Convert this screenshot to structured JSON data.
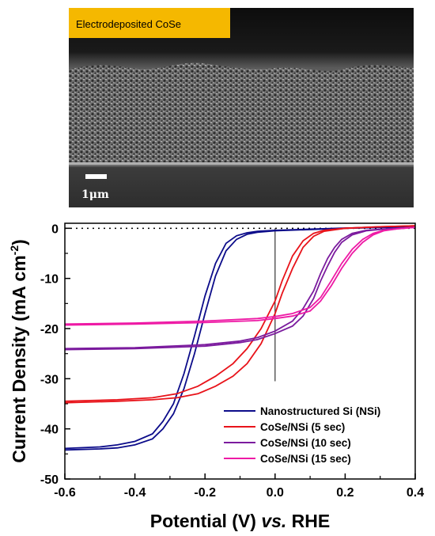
{
  "sem_image": {
    "label": "Electrodeposited CoSe",
    "label_bg_color": "#f5b800",
    "scale_bar_text": "1μm"
  },
  "chart_data": {
    "type": "line",
    "xlabel_main": "Potential (V) ",
    "xlabel_italic": "vs.",
    "xlabel_tail": " RHE",
    "ylabel": "Current Density (mA cm",
    "ylabel_sup": "-2",
    "ylabel_tail": ")",
    "xlim": [
      -0.6,
      0.4
    ],
    "ylim": [
      -50,
      1
    ],
    "xticks": [
      -0.6,
      -0.4,
      -0.2,
      0.0,
      0.2,
      0.4
    ],
    "xtick_labels": [
      "-0.6",
      "-0.4",
      "-0.2",
      "0.0",
      "0.2",
      "0.4"
    ],
    "yticks": [
      0,
      -10,
      -20,
      -30,
      -40,
      -50
    ],
    "ytick_labels": [
      "0",
      "-10",
      "-20",
      "-30",
      "-40",
      "-50"
    ],
    "grid": false,
    "legend_position": "bottom-right",
    "reference_line_x": 0.0,
    "reference_line_ymin": -30.5,
    "zero_dotted_line": true,
    "series": [
      {
        "name": "Nanostructured Si (NSi)",
        "color": "#0c0c8a",
        "forward": [
          [
            -0.6,
            -44.2
          ],
          [
            -0.5,
            -44.0
          ],
          [
            -0.45,
            -43.8
          ],
          [
            -0.4,
            -43.2
          ],
          [
            -0.35,
            -42.0
          ],
          [
            -0.32,
            -40.0
          ],
          [
            -0.29,
            -37.0
          ],
          [
            -0.26,
            -32.0
          ],
          [
            -0.23,
            -25.0
          ],
          [
            -0.2,
            -17.0
          ],
          [
            -0.17,
            -9.5
          ],
          [
            -0.14,
            -4.5
          ],
          [
            -0.11,
            -2.2
          ],
          [
            -0.08,
            -1.2
          ],
          [
            -0.05,
            -0.8
          ],
          [
            0.0,
            -0.5
          ],
          [
            0.2,
            0.0
          ],
          [
            0.4,
            0.3
          ]
        ],
        "reverse": [
          [
            -0.6,
            -43.9
          ],
          [
            -0.5,
            -43.6
          ],
          [
            -0.45,
            -43.2
          ],
          [
            -0.4,
            -42.5
          ],
          [
            -0.35,
            -41.0
          ],
          [
            -0.32,
            -38.5
          ],
          [
            -0.29,
            -35.0
          ],
          [
            -0.26,
            -29.0
          ],
          [
            -0.23,
            -21.5
          ],
          [
            -0.2,
            -13.5
          ],
          [
            -0.17,
            -7.0
          ],
          [
            -0.14,
            -3.0
          ],
          [
            -0.11,
            -1.5
          ],
          [
            -0.08,
            -0.9
          ],
          [
            -0.05,
            -0.6
          ],
          [
            0.0,
            -0.4
          ],
          [
            0.2,
            0.05
          ],
          [
            0.4,
            0.3
          ]
        ]
      },
      {
        "name": "CoSe/NSi (5 sec)",
        "color": "#e8131a",
        "forward": [
          [
            -0.6,
            -34.8
          ],
          [
            -0.45,
            -34.5
          ],
          [
            -0.35,
            -34.2
          ],
          [
            -0.28,
            -33.8
          ],
          [
            -0.22,
            -33.0
          ],
          [
            -0.17,
            -31.5
          ],
          [
            -0.12,
            -29.5
          ],
          [
            -0.08,
            -27.0
          ],
          [
            -0.04,
            -23.0
          ],
          [
            0.0,
            -17.0
          ],
          [
            0.02,
            -13.0
          ],
          [
            0.05,
            -8.0
          ],
          [
            0.08,
            -3.8
          ],
          [
            0.11,
            -1.6
          ],
          [
            0.14,
            -0.6
          ],
          [
            0.2,
            0.0
          ],
          [
            0.3,
            0.3
          ],
          [
            0.4,
            0.5
          ]
        ],
        "reverse": [
          [
            -0.6,
            -34.5
          ],
          [
            -0.45,
            -34.2
          ],
          [
            -0.35,
            -33.8
          ],
          [
            -0.28,
            -33.0
          ],
          [
            -0.22,
            -31.5
          ],
          [
            -0.17,
            -29.5
          ],
          [
            -0.12,
            -27.0
          ],
          [
            -0.08,
            -24.0
          ],
          [
            -0.04,
            -20.0
          ],
          [
            0.0,
            -14.5
          ],
          [
            0.02,
            -10.5
          ],
          [
            0.05,
            -5.5
          ],
          [
            0.08,
            -2.5
          ],
          [
            0.11,
            -1.0
          ],
          [
            0.14,
            -0.4
          ],
          [
            0.2,
            0.0
          ],
          [
            0.3,
            0.3
          ],
          [
            0.4,
            0.5
          ]
        ]
      },
      {
        "name": "CoSe/NSi (10 sec)",
        "color": "#7b1b9e",
        "forward": [
          [
            -0.6,
            -24.2
          ],
          [
            -0.4,
            -24.0
          ],
          [
            -0.2,
            -23.5
          ],
          [
            -0.1,
            -22.8
          ],
          [
            -0.05,
            -22.2
          ],
          [
            0.0,
            -21.0
          ],
          [
            0.05,
            -19.5
          ],
          [
            0.08,
            -17.5
          ],
          [
            0.11,
            -14.0
          ],
          [
            0.13,
            -10.5
          ],
          [
            0.15,
            -7.5
          ],
          [
            0.17,
            -4.8
          ],
          [
            0.19,
            -2.8
          ],
          [
            0.22,
            -1.3
          ],
          [
            0.26,
            -0.5
          ],
          [
            0.32,
            -0.1
          ],
          [
            0.4,
            0.2
          ]
        ],
        "reverse": [
          [
            -0.6,
            -24.0
          ],
          [
            -0.4,
            -23.8
          ],
          [
            -0.2,
            -23.2
          ],
          [
            -0.1,
            -22.5
          ],
          [
            -0.05,
            -21.8
          ],
          [
            0.0,
            -20.5
          ],
          [
            0.05,
            -18.5
          ],
          [
            0.08,
            -16.0
          ],
          [
            0.11,
            -12.5
          ],
          [
            0.13,
            -9.0
          ],
          [
            0.15,
            -6.0
          ],
          [
            0.17,
            -3.8
          ],
          [
            0.19,
            -2.2
          ],
          [
            0.22,
            -1.0
          ],
          [
            0.26,
            -0.4
          ],
          [
            0.32,
            -0.1
          ],
          [
            0.4,
            0.2
          ]
        ]
      },
      {
        "name": "CoSe/NSi (15 sec)",
        "color": "#ee1aa5",
        "forward": [
          [
            -0.6,
            -19.3
          ],
          [
            -0.4,
            -19.1
          ],
          [
            -0.2,
            -18.8
          ],
          [
            -0.05,
            -18.4
          ],
          [
            0.0,
            -18.0
          ],
          [
            0.05,
            -17.5
          ],
          [
            0.1,
            -16.5
          ],
          [
            0.13,
            -14.5
          ],
          [
            0.16,
            -11.5
          ],
          [
            0.19,
            -8.0
          ],
          [
            0.22,
            -5.0
          ],
          [
            0.25,
            -2.8
          ],
          [
            0.28,
            -1.3
          ],
          [
            0.31,
            -0.5
          ],
          [
            0.35,
            -0.1
          ],
          [
            0.4,
            0.2
          ]
        ],
        "reverse": [
          [
            -0.6,
            -19.1
          ],
          [
            -0.4,
            -18.9
          ],
          [
            -0.2,
            -18.5
          ],
          [
            -0.05,
            -18.0
          ],
          [
            0.0,
            -17.6
          ],
          [
            0.05,
            -17.0
          ],
          [
            0.1,
            -15.8
          ],
          [
            0.13,
            -13.8
          ],
          [
            0.16,
            -10.5
          ],
          [
            0.19,
            -7.0
          ],
          [
            0.22,
            -4.2
          ],
          [
            0.25,
            -2.2
          ],
          [
            0.28,
            -1.0
          ],
          [
            0.31,
            -0.4
          ],
          [
            0.35,
            -0.1
          ],
          [
            0.4,
            0.2
          ]
        ]
      }
    ]
  }
}
